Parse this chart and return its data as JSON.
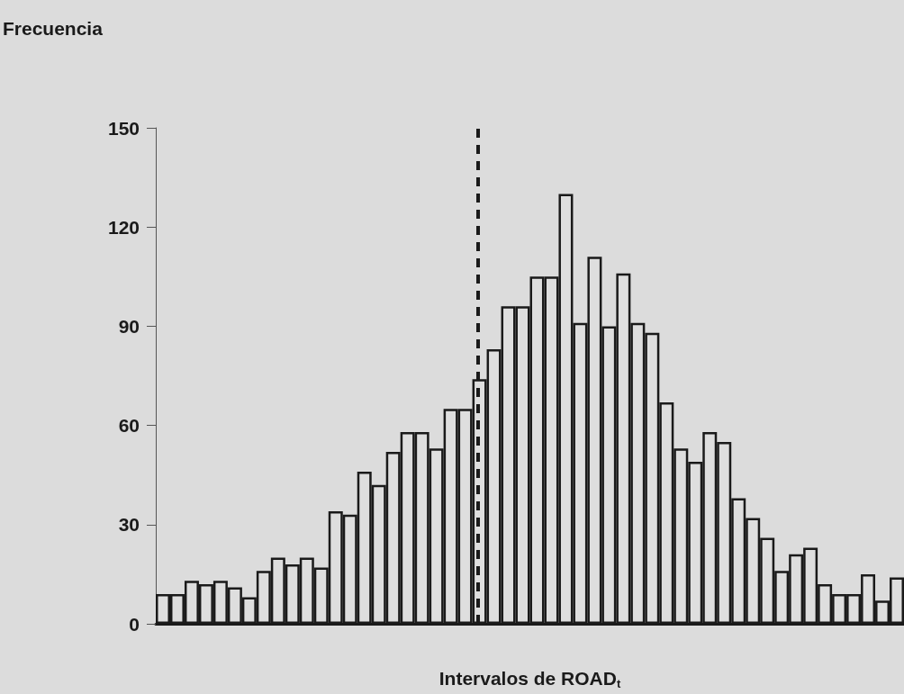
{
  "chart_data": {
    "type": "bar",
    "xlabel": "Intervalos de ROAD$_{t}$",
    "ylabel": "Frecuencia",
    "categories": [
      null,
      null,
      null,
      null,
      null,
      null,
      null,
      null,
      null,
      null,
      null,
      null,
      null,
      null,
      null,
      null,
      null,
      null,
      null,
      null,
      null,
      null,
      null,
      null,
      null,
      null,
      null,
      null,
      null,
      null,
      null,
      null,
      null,
      null,
      null,
      null,
      null,
      null,
      null,
      null,
      null,
      null,
      null,
      null,
      null,
      null,
      null,
      null,
      null,
      null,
      null,
      null
    ],
    "values": [
      9,
      9,
      13,
      12,
      13,
      11,
      8,
      16,
      20,
      18,
      20,
      17,
      34,
      33,
      46,
      42,
      52,
      58,
      58,
      53,
      65,
      65,
      74,
      83,
      96,
      96,
      105,
      105,
      130,
      91,
      111,
      90,
      106,
      91,
      88,
      67,
      53,
      49,
      58,
      55,
      38,
      32,
      26,
      16,
      21,
      23,
      12,
      9,
      9,
      15,
      7,
      14
    ],
    "color": "#dedede",
    "ylim": [
      0,
      150
    ],
    "yticks": [
      0,
      30,
      60,
      90,
      120,
      150
    ],
    "tick_labels": "y",
    "grid": false
  }
}
